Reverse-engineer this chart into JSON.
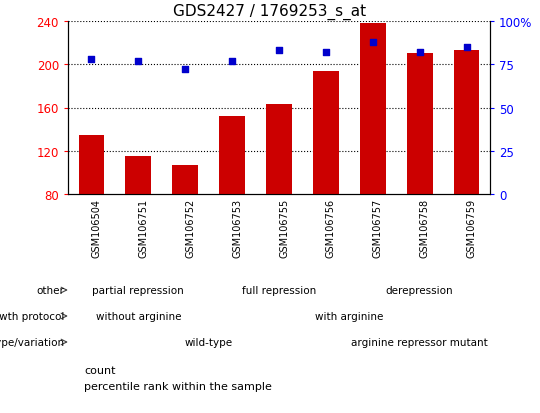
{
  "title": "GDS2427 / 1769253_s_at",
  "samples": [
    "GSM106504",
    "GSM106751",
    "GSM106752",
    "GSM106753",
    "GSM106755",
    "GSM106756",
    "GSM106757",
    "GSM106758",
    "GSM106759"
  ],
  "counts": [
    135,
    115,
    107,
    152,
    163,
    194,
    238,
    210,
    213
  ],
  "percentile_ranks": [
    78,
    77,
    72,
    77,
    83,
    82,
    88,
    82,
    85
  ],
  "ylim_left": [
    80,
    240
  ],
  "ylim_right": [
    0,
    100
  ],
  "yticks_left": [
    80,
    120,
    160,
    200,
    240
  ],
  "yticks_right": [
    0,
    25,
    50,
    75,
    100
  ],
  "bar_color": "#cc0000",
  "scatter_color": "#0000cc",
  "title_fontsize": 11,
  "xtick_bg": "#cccccc",
  "annotation_rows": [
    {
      "label": "other",
      "segments": [
        {
          "text": "partial repression",
          "start": 0,
          "end": 3,
          "color": "#aaddaa"
        },
        {
          "text": "full repression",
          "start": 3,
          "end": 6,
          "color": "#55cc55"
        },
        {
          "text": "derepression",
          "start": 6,
          "end": 9,
          "color": "#44bb44"
        }
      ]
    },
    {
      "label": "growth protocol",
      "segments": [
        {
          "text": "without arginine",
          "start": 0,
          "end": 3,
          "color": "#9988dd"
        },
        {
          "text": "with arginine",
          "start": 3,
          "end": 9,
          "color": "#aaaacc"
        }
      ]
    },
    {
      "label": "genotype/variation",
      "segments": [
        {
          "text": "wild-type",
          "start": 0,
          "end": 6,
          "color": "#f4aaaa"
        },
        {
          "text": "arginine repressor mutant",
          "start": 6,
          "end": 9,
          "color": "#cc7777"
        }
      ]
    }
  ],
  "legend_items": [
    {
      "color": "#cc0000",
      "label": "count"
    },
    {
      "color": "#0000cc",
      "label": "percentile rank within the sample"
    }
  ]
}
